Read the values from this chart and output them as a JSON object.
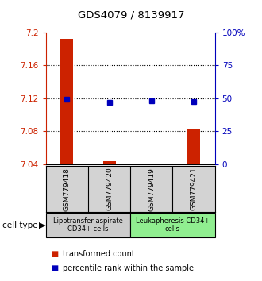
{
  "title": "GDS4079 / 8139917",
  "samples": [
    "GSM779418",
    "GSM779420",
    "GSM779419",
    "GSM779421"
  ],
  "red_values": [
    7.192,
    7.044,
    7.038,
    7.082
  ],
  "blue_values": [
    7.119,
    7.115,
    7.117,
    7.116
  ],
  "ylim": [
    7.04,
    7.2
  ],
  "yticks_left": [
    7.04,
    7.08,
    7.12,
    7.16,
    7.2
  ],
  "ytick_left_labels": [
    "7.04",
    "7.08",
    "7.12",
    "7.16",
    "7.2"
  ],
  "yticks_right": [
    0,
    25,
    50,
    75,
    100
  ],
  "ytick_right_labels": [
    "0",
    "25",
    "50",
    "75",
    "100%"
  ],
  "groups": [
    {
      "label": "Lipotransfer aspirate\nCD34+ cells",
      "indices": [
        0,
        1
      ],
      "color": "#cccccc"
    },
    {
      "label": "Leukapheresis CD34+\ncells",
      "indices": [
        2,
        3
      ],
      "color": "#90ee90"
    }
  ],
  "cell_type_label": "cell type",
  "legend_red": "transformed count",
  "legend_blue": "percentile rank within the sample",
  "red_color": "#cc2200",
  "blue_color": "#0000bb",
  "bar_width": 0.3,
  "marker_size": 5
}
